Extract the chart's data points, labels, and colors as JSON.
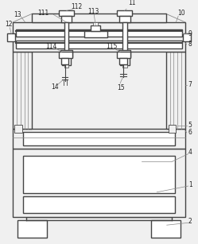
{
  "bg_color": "#f0f0f0",
  "line_color": "#888888",
  "line_color_dark": "#444444",
  "figsize": [
    2.49,
    3.07
  ],
  "dpi": 100,
  "fs": 5.5
}
